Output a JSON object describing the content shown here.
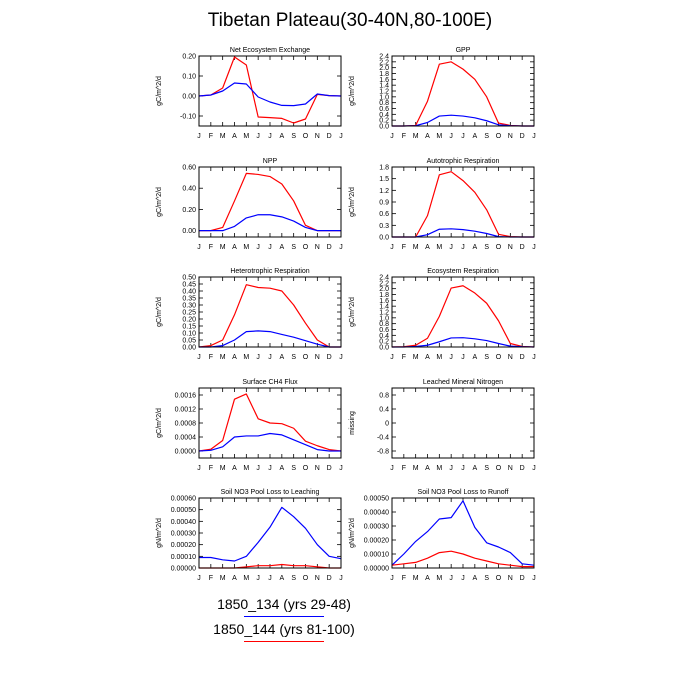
{
  "page": {
    "title": "Tibetan Plateau(30-40N,80-100E)"
  },
  "legend": [
    {
      "label": "1850_134 (yrs 29-48)",
      "color": "#0000ff"
    },
    {
      "label": "1850_144 (yrs 81-100)",
      "color": "#ff0000"
    }
  ],
  "chart_data": [
    {
      "type": "line",
      "title": "Net Ecosystem Exchange",
      "ylabel": "gC/m^2/d",
      "x": [
        "J",
        "F",
        "M",
        "A",
        "M",
        "J",
        "J",
        "A",
        "S",
        "O",
        "N",
        "D",
        "J"
      ],
      "ylim": [
        -0.15,
        0.2
      ],
      "yticks": [
        -0.1,
        0.0,
        0.1,
        0.2
      ],
      "ytick_labels": [
        "-0.10",
        "0.00",
        "0.10",
        "0.20"
      ],
      "series": [
        {
          "color": "#ff0000",
          "values": [
            0.0,
            0.005,
            0.04,
            0.195,
            0.155,
            -0.105,
            -0.108,
            -0.112,
            -0.135,
            -0.115,
            0.008,
            0.002,
            0.0
          ]
        },
        {
          "color": "#0000ff",
          "values": [
            0.0,
            0.005,
            0.025,
            0.065,
            0.06,
            -0.005,
            -0.03,
            -0.047,
            -0.048,
            -0.04,
            0.01,
            0.002,
            0.0
          ]
        }
      ]
    },
    {
      "type": "line",
      "title": "GPP",
      "ylabel": "gC/m^2/d",
      "x": [
        "J",
        "F",
        "M",
        "A",
        "M",
        "J",
        "J",
        "A",
        "S",
        "O",
        "N",
        "D",
        "J"
      ],
      "ylim": [
        0,
        2.4
      ],
      "yticks": [
        0,
        0.2,
        0.4,
        0.6,
        0.8,
        1.0,
        1.2,
        1.4,
        1.6,
        1.8,
        2.0,
        2.2,
        2.4
      ],
      "ytick_labels": [
        "0.0",
        "0.2",
        "0.4",
        "0.6",
        "0.8",
        "1.0",
        "1.2",
        "1.4",
        "1.6",
        "1.8",
        "2.0",
        "2.2",
        "2.4"
      ],
      "series": [
        {
          "color": "#ff0000",
          "values": [
            0.0,
            0.0,
            0.02,
            0.85,
            2.12,
            2.2,
            1.95,
            1.6,
            1.0,
            0.1,
            0.02,
            0.0,
            0.0
          ]
        },
        {
          "color": "#0000ff",
          "values": [
            0.0,
            0.0,
            0.01,
            0.12,
            0.34,
            0.37,
            0.34,
            0.28,
            0.18,
            0.04,
            0.01,
            0.0,
            0.0
          ]
        }
      ]
    },
    {
      "type": "line",
      "title": "NPP",
      "ylabel": "gC/m^2/d",
      "x": [
        "J",
        "F",
        "M",
        "A",
        "M",
        "J",
        "J",
        "A",
        "S",
        "O",
        "N",
        "D",
        "J"
      ],
      "ylim": [
        -0.06,
        0.6
      ],
      "yticks": [
        0.0,
        0.2,
        0.4,
        0.6
      ],
      "ytick_labels": [
        "0.00",
        "0.20",
        "0.40",
        "0.60"
      ],
      "series": [
        {
          "color": "#ff0000",
          "values": [
            0.0,
            0.0,
            0.03,
            0.28,
            0.54,
            0.53,
            0.51,
            0.44,
            0.28,
            0.05,
            0.0,
            0.0,
            0.0
          ]
        },
        {
          "color": "#0000ff",
          "values": [
            0.0,
            0.0,
            0.0,
            0.04,
            0.12,
            0.15,
            0.15,
            0.13,
            0.09,
            0.03,
            0.0,
            0.0,
            0.0
          ]
        }
      ]
    },
    {
      "type": "line",
      "title": "Autotrophic Respiration",
      "ylabel": "gC/m^2/d",
      "x": [
        "J",
        "F",
        "M",
        "A",
        "M",
        "J",
        "J",
        "A",
        "S",
        "O",
        "N",
        "D",
        "J"
      ],
      "ylim": [
        0,
        1.8
      ],
      "yticks": [
        0.0,
        0.3,
        0.6,
        0.9,
        1.2,
        1.5,
        1.8
      ],
      "ytick_labels": [
        "0.0",
        "0.3",
        "0.6",
        "0.9",
        "1.2",
        "1.5",
        "1.8"
      ],
      "series": [
        {
          "color": "#ff0000",
          "values": [
            0.0,
            0.0,
            0.0,
            0.55,
            1.6,
            1.68,
            1.45,
            1.15,
            0.7,
            0.07,
            0.01,
            0.0,
            0.0
          ]
        },
        {
          "color": "#0000ff",
          "values": [
            0.0,
            0.0,
            0.0,
            0.06,
            0.2,
            0.21,
            0.19,
            0.15,
            0.09,
            0.01,
            0.0,
            0.0,
            0.0
          ]
        }
      ]
    },
    {
      "type": "line",
      "title": "Heterotrophic Respiration",
      "ylabel": "gC/m^2/d",
      "x": [
        "J",
        "F",
        "M",
        "A",
        "M",
        "J",
        "J",
        "A",
        "S",
        "O",
        "N",
        "D",
        "J"
      ],
      "ylim": [
        0,
        0.5
      ],
      "yticks": [
        0.0,
        0.05,
        0.1,
        0.15,
        0.2,
        0.25,
        0.3,
        0.35,
        0.4,
        0.45,
        0.5
      ],
      "ytick_labels": [
        "0.00",
        "0.05",
        "0.10",
        "0.15",
        "0.20",
        "0.25",
        "0.30",
        "0.35",
        "0.40",
        "0.45",
        "0.50"
      ],
      "series": [
        {
          "color": "#ff0000",
          "values": [
            0.0,
            0.01,
            0.05,
            0.23,
            0.445,
            0.425,
            0.42,
            0.4,
            0.3,
            0.17,
            0.05,
            0.0,
            0.0
          ]
        },
        {
          "color": "#0000ff",
          "values": [
            0.0,
            0.0,
            0.01,
            0.05,
            0.11,
            0.115,
            0.11,
            0.09,
            0.07,
            0.045,
            0.02,
            0.0,
            0.0
          ]
        }
      ]
    },
    {
      "type": "line",
      "title": "Ecosystem Respiration",
      "ylabel": "gC/m^2/d",
      "x": [
        "J",
        "F",
        "M",
        "A",
        "M",
        "J",
        "J",
        "A",
        "S",
        "O",
        "N",
        "D",
        "J"
      ],
      "ylim": [
        0,
        2.4
      ],
      "yticks": [
        0,
        0.2,
        0.4,
        0.6,
        0.8,
        1.0,
        1.2,
        1.4,
        1.6,
        1.8,
        2.0,
        2.2,
        2.4
      ],
      "ytick_labels": [
        "0.0",
        "0.2",
        "0.4",
        "0.6",
        "0.8",
        "1.0",
        "1.2",
        "1.4",
        "1.6",
        "1.8",
        "2.0",
        "2.2",
        "2.4"
      ],
      "series": [
        {
          "color": "#ff0000",
          "values": [
            0.0,
            0.01,
            0.06,
            0.3,
            1.05,
            2.02,
            2.1,
            1.85,
            1.5,
            0.9,
            0.12,
            0.02,
            0.0
          ]
        },
        {
          "color": "#0000ff",
          "values": [
            0.0,
            0.0,
            0.02,
            0.06,
            0.18,
            0.31,
            0.32,
            0.28,
            0.22,
            0.12,
            0.03,
            0.01,
            0.0
          ]
        }
      ]
    },
    {
      "type": "line",
      "title": "Surface CH4 Flux",
      "ylabel": "gC/m^2/d",
      "x": [
        "J",
        "F",
        "M",
        "A",
        "M",
        "J",
        "J",
        "A",
        "S",
        "O",
        "N",
        "D",
        "J"
      ],
      "ylim": [
        -0.0002,
        0.0018
      ],
      "yticks": [
        0.0,
        0.0004,
        0.0008,
        0.0012,
        0.0016
      ],
      "ytick_labels": [
        "0.0000",
        "0.0004",
        "0.0008",
        "0.0012",
        "0.0016"
      ],
      "series": [
        {
          "color": "#ff0000",
          "values": [
            0.0,
            5e-05,
            0.0003,
            0.00148,
            0.00163,
            0.00092,
            0.0008,
            0.00078,
            0.00065,
            0.00028,
            0.00015,
            4e-05,
            0.0
          ]
        },
        {
          "color": "#0000ff",
          "values": [
            0.0,
            2e-05,
            0.00012,
            0.0004,
            0.00043,
            0.00043,
            0.0005,
            0.00046,
            0.00032,
            0.00018,
            4e-05,
            0.0,
            0.0
          ]
        }
      ]
    },
    {
      "type": "line",
      "title": "Leached Mineral Nitrogen",
      "ylabel": "missing",
      "x": [
        "J",
        "F",
        "M",
        "A",
        "M",
        "J",
        "J",
        "A",
        "S",
        "O",
        "N",
        "D",
        "J"
      ],
      "ylim": [
        -1.0,
        1.0
      ],
      "yticks": [
        -0.8,
        -0.4,
        0.0,
        0.4,
        0.8
      ],
      "ytick_labels": [
        "-0.8",
        "-0.4",
        "0",
        "0.4",
        "0.8"
      ],
      "series": []
    },
    {
      "type": "line",
      "title": "Soil NO3 Pool Loss to Leaching",
      "ylabel": "gN/m^2/d",
      "x": [
        "J",
        "F",
        "M",
        "A",
        "M",
        "J",
        "J",
        "A",
        "S",
        "O",
        "N",
        "D",
        "J"
      ],
      "ylim": [
        0,
        0.0006
      ],
      "yticks": [
        0.0,
        0.0001,
        0.0002,
        0.0003,
        0.0004,
        0.0005,
        0.0006
      ],
      "ytick_labels": [
        "0.00000",
        "0.00010",
        "0.00020",
        "0.00030",
        "0.00040",
        "0.00050",
        "0.00060"
      ],
      "series": [
        {
          "color": "#0000ff",
          "values": [
            9e-05,
            9e-05,
            7e-05,
            6e-05,
            0.0001,
            0.00022,
            0.00035,
            0.00052,
            0.00044,
            0.00034,
            0.0002,
            0.0001,
            8e-05
          ]
        },
        {
          "color": "#ff0000",
          "values": [
            0.0,
            0.0,
            0.0,
            0.0,
            1e-05,
            2e-05,
            2e-05,
            3e-05,
            2e-05,
            2e-05,
            1e-05,
            0.0,
            0.0
          ]
        }
      ]
    },
    {
      "type": "line",
      "title": "Soil NO3 Pool Loss to Runoff",
      "ylabel": "gN/m^2/d",
      "x": [
        "J",
        "F",
        "M",
        "A",
        "M",
        "J",
        "J",
        "A",
        "S",
        "O",
        "N",
        "D",
        "J"
      ],
      "ylim": [
        0,
        0.0005
      ],
      "yticks": [
        0.0,
        0.0001,
        0.0002,
        0.0003,
        0.0004,
        0.0005
      ],
      "ytick_labels": [
        "0.00000",
        "0.00010",
        "0.00020",
        "0.00030",
        "0.00040",
        "0.00050"
      ],
      "series": [
        {
          "color": "#0000ff",
          "values": [
            2e-05,
            0.0001,
            0.00019,
            0.00026,
            0.00035,
            0.00036,
            0.00048,
            0.00029,
            0.00018,
            0.00015,
            0.00011,
            3e-05,
            2e-05
          ]
        },
        {
          "color": "#ff0000",
          "values": [
            2e-05,
            3e-05,
            4e-05,
            7e-05,
            0.00011,
            0.00012,
            0.0001,
            7e-05,
            5e-05,
            3e-05,
            2e-05,
            1e-05,
            1e-05
          ]
        }
      ]
    }
  ]
}
